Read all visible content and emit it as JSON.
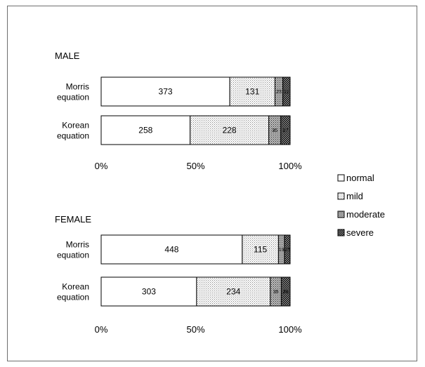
{
  "chart_data": [
    {
      "type": "bar",
      "orientation": "horizontal",
      "stacked": "percent",
      "title": "MALE",
      "categories": [
        "Morris equation",
        "Korean equation"
      ],
      "category_lines": [
        [
          "Morris",
          "equation"
        ],
        [
          "Korean",
          "equation"
        ]
      ],
      "series": [
        {
          "name": "normal",
          "values": [
            373,
            258
          ]
        },
        {
          "name": "mild",
          "values": [
            131,
            228
          ]
        },
        {
          "name": "moderate",
          "values": [
            23,
            35
          ]
        },
        {
          "name": "severe",
          "values": [
            21,
            27
          ]
        }
      ],
      "xticks": [
        "0%",
        "50%",
        "100%"
      ],
      "xlim": [
        0,
        100
      ]
    },
    {
      "type": "bar",
      "orientation": "horizontal",
      "stacked": "percent",
      "title": "FEMALE",
      "categories": [
        "Morris equation",
        "Korean equation"
      ],
      "category_lines": [
        [
          "Morris",
          "equation"
        ],
        [
          "Korean",
          "equation"
        ]
      ],
      "series": [
        {
          "name": "normal",
          "values": [
            448,
            303
          ]
        },
        {
          "name": "mild",
          "values": [
            115,
            234
          ]
        },
        {
          "name": "moderate",
          "values": [
            19,
            35
          ]
        },
        {
          "name": "severe",
          "values": [
            18,
            28
          ]
        }
      ],
      "xticks": [
        "0%",
        "50%",
        "100%"
      ],
      "xlim": [
        0,
        100
      ]
    }
  ],
  "legend": {
    "placement": "right",
    "items": [
      "normal",
      "mild",
      "moderate",
      "severe"
    ]
  }
}
